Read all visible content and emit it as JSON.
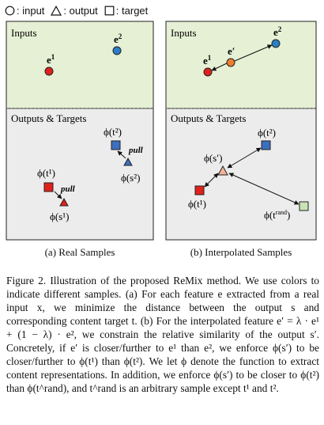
{
  "legend": {
    "input_label": ": input",
    "output_label": ": output",
    "target_label": ": target"
  },
  "colors": {
    "inputs_bg": "#e6f0d4",
    "outputs_bg": "#ececec",
    "e1": "#e0211b",
    "e2": "#2a7fc6",
    "e_prime": "#ee7d2f",
    "target_t1": "#e0211b",
    "target_t2": "#3d6fbf",
    "output_s1": "#e0211b",
    "output_s_prime": "#f3b49a",
    "target_rand": "#c9e2b6"
  },
  "panel_a": {
    "inputs_label": "Inputs",
    "outputs_label": "Outputs & Targets",
    "e1": "e",
    "e1_sup": "1",
    "e2": "e",
    "e2_sup": "2",
    "phi_t2": "ϕ(t²)",
    "phi_s2": "ϕ(s²)",
    "phi_t1": "ϕ(t¹)",
    "phi_s1": "ϕ(s¹)",
    "pull_upper": "pull",
    "pull_lower": "pull",
    "caption": "(a) Real Samples"
  },
  "panel_b": {
    "inputs_label": "Inputs",
    "outputs_label": "Outputs & Targets",
    "e1": "e",
    "e1_sup": "1",
    "e2": "e",
    "e2_sup": "2",
    "e_prime": "e′",
    "phi_t2": "ϕ(t²)",
    "phi_s_prime": "ϕ(s′)",
    "phi_t1": "ϕ(t¹)",
    "phi_trand": "ϕ(t",
    "phi_trand_sup": "rand",
    "phi_trand_close": ")",
    "caption": "(b) Interpolated Samples"
  },
  "caption": {
    "figure_label": "Figure 2.",
    "text": "Illustration of the proposed ReMix method. We use colors to indicate different samples. (a) For each feature e extracted from a real input x, we minimize the distance between the output s and corresponding content target t. (b) For the interpolated feature e′ = λ · e¹ + (1 − λ) · e², we constrain the relative similarity of the output s′. Concretely, if e′ is closer/further to e¹ than e², we enforce ϕ(s′) to be closer/further to ϕ(t¹) than ϕ(t²). We let ϕ denote the function to extract content representations. In addition, we enforce ϕ(s′) to be closer to ϕ(t²) than ϕ(t^rand), and t^rand is an arbitrary sample except t¹ and t²."
  }
}
